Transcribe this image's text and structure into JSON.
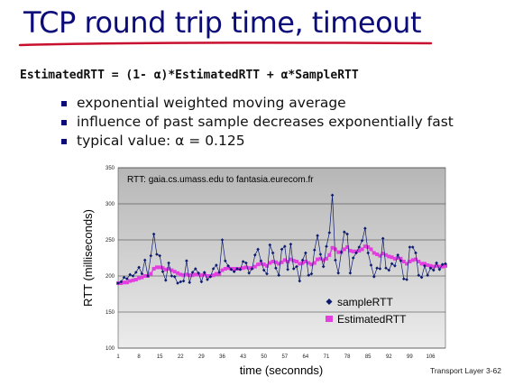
{
  "slide": {
    "title": "TCP round trip time, timeout",
    "formula": "EstimatedRTT = (1- α)*EstimatedRTT + α*SampleRTT",
    "bullets": [
      "exponential weighted moving average",
      "influence of past sample decreases exponentially fast",
      "typical value: α  = 0.125"
    ],
    "footer": "Transport Layer 3-62"
  },
  "colors": {
    "title": "#0b0b7a",
    "underline": "#c8102e",
    "sample": "#0b1a6e",
    "estimated": "#e23ee0",
    "plot_bg_top": "#b6b6b6",
    "plot_bg_bottom": "#ececec"
  },
  "chart_data": {
    "type": "line",
    "annotation": "RTT: gaia.cs.umass.edu to fantasia.eurecom.fr",
    "xlabel": "time (seconnds)",
    "ylabel": "RTT (milliseconds)",
    "xlim": [
      1,
      111
    ],
    "ylim": [
      100,
      350
    ],
    "x_ticks": [
      "1",
      "8",
      "15",
      "22",
      "29",
      "36",
      "43",
      "50",
      "57",
      "64",
      "71",
      "78",
      "85",
      "92",
      "99",
      "106"
    ],
    "y_ticks": [
      "100",
      "150",
      "200",
      "250",
      "300",
      "350"
    ],
    "grid": "horizontal",
    "legend_position": "bottom-right",
    "x": [
      1,
      2,
      3,
      4,
      5,
      6,
      7,
      8,
      9,
      10,
      11,
      12,
      13,
      14,
      15,
      16,
      17,
      18,
      19,
      20,
      21,
      22,
      23,
      24,
      25,
      26,
      27,
      28,
      29,
      30,
      31,
      32,
      33,
      34,
      35,
      36,
      37,
      38,
      39,
      40,
      41,
      42,
      43,
      44,
      45,
      46,
      47,
      48,
      49,
      50,
      51,
      52,
      53,
      54,
      55,
      56,
      57,
      58,
      59,
      60,
      61,
      62,
      63,
      64,
      65,
      66,
      67,
      68,
      69,
      70,
      71,
      72,
      73,
      74,
      75,
      76,
      77,
      78,
      79,
      80,
      81,
      82,
      83,
      84,
      85,
      86,
      87,
      88,
      89,
      90,
      91,
      92,
      93,
      94,
      95,
      96,
      97,
      98,
      99,
      100,
      101,
      102,
      103,
      104,
      105,
      106,
      107,
      108,
      109,
      110,
      111
    ],
    "series": [
      {
        "name": "sampleRTT",
        "marker": "diamond",
        "values": [
          190,
          192,
          198,
          196,
          202,
          200,
          205,
          212,
          203,
          222,
          200,
          228,
          258,
          230,
          228,
          206,
          194,
          218,
          200,
          199,
          190,
          192,
          193,
          221,
          191,
          205,
          210,
          204,
          192,
          205,
          195,
          199,
          210,
          215,
          205,
          250,
          221,
          214,
          209,
          206,
          210,
          209,
          220,
          218,
          204,
          210,
          229,
          237,
          221,
          208,
          203,
          243,
          232,
          211,
          201,
          237,
          241,
          209,
          244,
          210,
          213,
          193,
          222,
          232,
          201,
          203,
          236,
          256,
          230,
          213,
          241,
          260,
          312,
          222,
          204,
          233,
          261,
          258,
          204,
          225,
          232,
          240,
          249,
          266,
          232,
          215,
          199,
          211,
          210,
          252,
          211,
          208,
          217,
          214,
          229,
          221,
          196,
          195,
          240,
          240,
          232,
          201,
          198,
          214,
          201,
          211,
          208,
          218,
          209,
          216,
          217
        ]
      },
      {
        "name": "EstimatedRTT",
        "marker": "square",
        "values": [
          190,
          190,
          191,
          191,
          193,
          194,
          195,
          197,
          198,
          200,
          200,
          203,
          210,
          212,
          212,
          211,
          209,
          210,
          208,
          206,
          204,
          202,
          201,
          202,
          201,
          201,
          202,
          202,
          201,
          202,
          200,
          200,
          201,
          203,
          203,
          208,
          210,
          211,
          210,
          210,
          210,
          210,
          211,
          212,
          211,
          211,
          213,
          216,
          217,
          216,
          214,
          218,
          220,
          219,
          217,
          219,
          222,
          220,
          223,
          221,
          220,
          217,
          218,
          220,
          218,
          216,
          218,
          223,
          224,
          222,
          224,
          229,
          239,
          237,
          233,
          233,
          237,
          240,
          235,
          234,
          234,
          235,
          237,
          241,
          240,
          237,
          232,
          230,
          228,
          231,
          229,
          227,
          226,
          224,
          225,
          224,
          220,
          217,
          220,
          222,
          223,
          220,
          217,
          217,
          215,
          214,
          213,
          214,
          213,
          213,
          214
        ]
      }
    ]
  }
}
